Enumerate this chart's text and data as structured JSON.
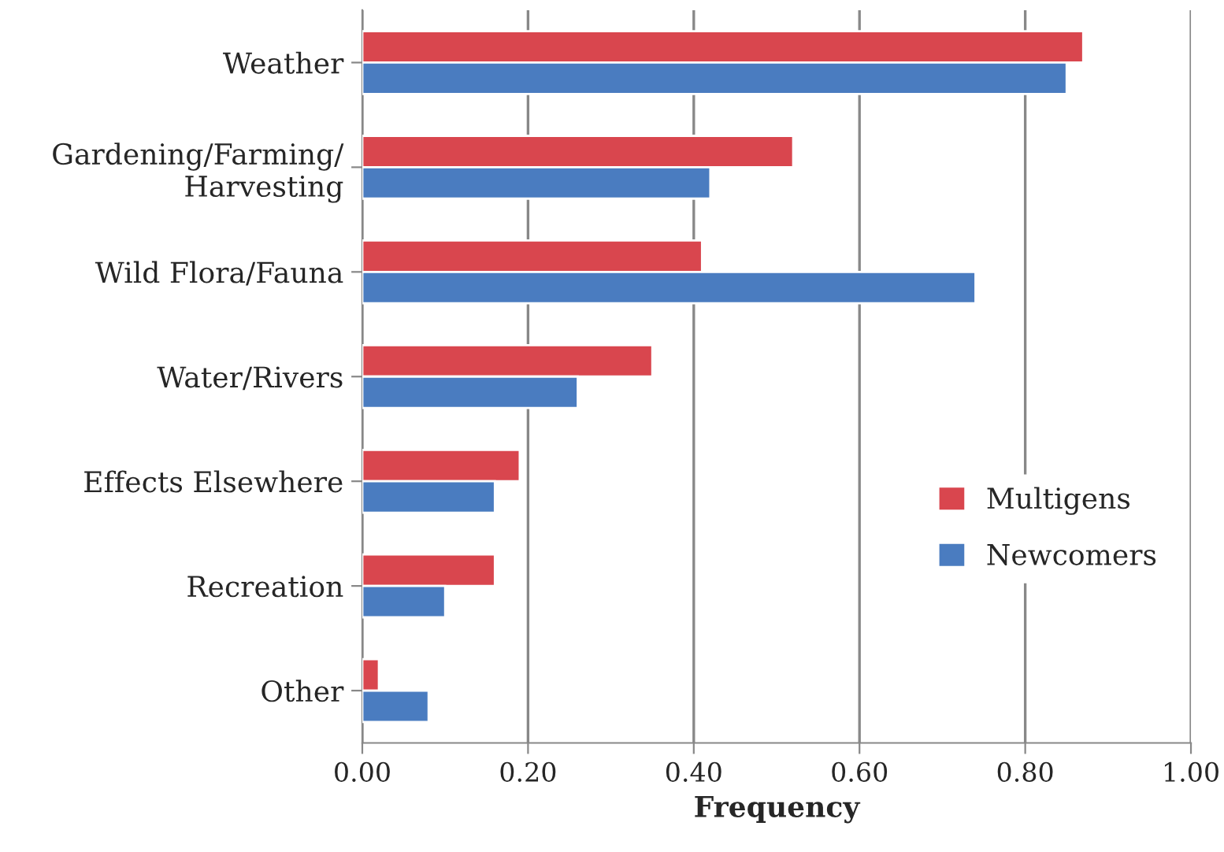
{
  "chart_data": {
    "type": "bar",
    "orientation": "horizontal",
    "xlabel": "Frequency",
    "categories": [
      "Weather",
      "Gardening/Farming/\nHarvesting",
      "Wild Flora/Fauna",
      "Water/Rivers",
      "Effects Elsewhere",
      "Recreation",
      "Other"
    ],
    "series": [
      {
        "name": "Multigens",
        "color": "#d9464e",
        "values": [
          0.87,
          0.52,
          0.41,
          0.35,
          0.19,
          0.16,
          0.02
        ]
      },
      {
        "name": "Newcomers",
        "color": "#4a7cc0",
        "values": [
          0.85,
          0.42,
          0.74,
          0.26,
          0.16,
          0.1,
          0.08
        ]
      }
    ],
    "xlim": [
      0,
      1
    ],
    "xticks": [
      {
        "value": 0,
        "label": "0.00"
      },
      {
        "value": 0.2,
        "label": "0.20"
      },
      {
        "value": 0.4,
        "label": "0.40"
      },
      {
        "value": 0.6,
        "label": "0.60"
      },
      {
        "value": 0.8,
        "label": "0.80"
      },
      {
        "value": 1,
        "label": "1.00"
      }
    ],
    "grid": "x",
    "legend": "bottom right"
  }
}
